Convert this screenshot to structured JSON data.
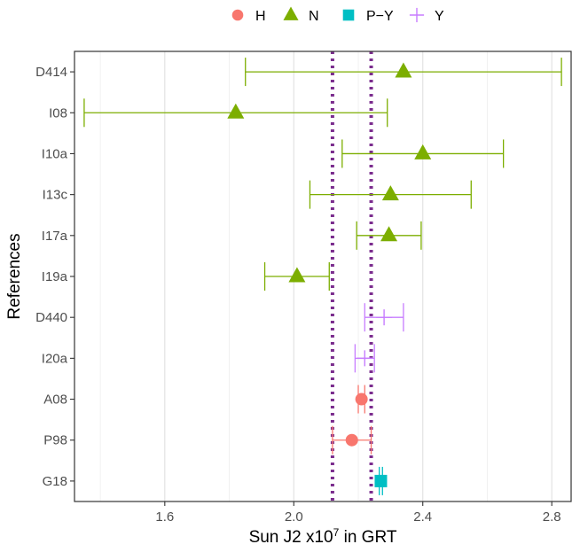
{
  "chart_data": {
    "type": "scatter",
    "title": "",
    "xlabel_main": "Sun J2 x10",
    "xlabel_sup": "7",
    "xlabel_tail": " in GRT",
    "ylabel": "References",
    "xlim": [
      1.32,
      2.86
    ],
    "x_ticks": [
      {
        "value": 1.6,
        "label": "1.6"
      },
      {
        "value": 2.0,
        "label": "2.0"
      },
      {
        "value": 2.4,
        "label": "2.4"
      },
      {
        "value": 2.8,
        "label": "2.8"
      }
    ],
    "x_minor_gridlines": [
      1.4,
      1.8,
      2.2,
      2.6
    ],
    "grid": "vertical",
    "legend_position": "top",
    "legend": [
      {
        "key": "H",
        "label": "H",
        "shape": "circle",
        "color": "#F8766D"
      },
      {
        "key": "N",
        "label": "N",
        "shape": "triangle",
        "color": "#7CAE00"
      },
      {
        "key": "P-Y",
        "label": "P−Y",
        "shape": "square",
        "color": "#00BFC4"
      },
      {
        "key": "Y",
        "label": "Y",
        "shape": "plus",
        "color": "#C77CFF"
      }
    ],
    "reference_lines": {
      "values": [
        2.12,
        2.24
      ],
      "style": "dotted",
      "color": "#7B2D8E"
    },
    "categories": [
      "D414",
      "I08",
      "I10a",
      "I13c",
      "I17a",
      "I19a",
      "D440",
      "I20a",
      "A08",
      "P98",
      "G18"
    ],
    "points": [
      {
        "ref": "D414",
        "group": "N",
        "value": 2.34,
        "low": 1.85,
        "high": 2.83
      },
      {
        "ref": "I08",
        "group": "N",
        "value": 1.82,
        "low": 1.35,
        "high": 2.29
      },
      {
        "ref": "I10a",
        "group": "N",
        "value": 2.4,
        "low": 2.15,
        "high": 2.65
      },
      {
        "ref": "I13c",
        "group": "N",
        "value": 2.3,
        "low": 2.05,
        "high": 2.55
      },
      {
        "ref": "I17a",
        "group": "N",
        "value": 2.295,
        "low": 2.195,
        "high": 2.395
      },
      {
        "ref": "I19a",
        "group": "N",
        "value": 2.01,
        "low": 1.91,
        "high": 2.11
      },
      {
        "ref": "D440",
        "group": "Y",
        "value": 2.28,
        "low": 2.22,
        "high": 2.34
      },
      {
        "ref": "I20a",
        "group": "Y",
        "value": 2.22,
        "low": 2.19,
        "high": 2.25
      },
      {
        "ref": "A08",
        "group": "H",
        "value": 2.21,
        "low": 2.2,
        "high": 2.22
      },
      {
        "ref": "P98",
        "group": "H",
        "value": 2.18,
        "low": 2.12,
        "high": 2.24
      },
      {
        "ref": "G18",
        "group": "P-Y",
        "value": 2.27,
        "low": 2.265,
        "high": 2.275
      }
    ]
  }
}
